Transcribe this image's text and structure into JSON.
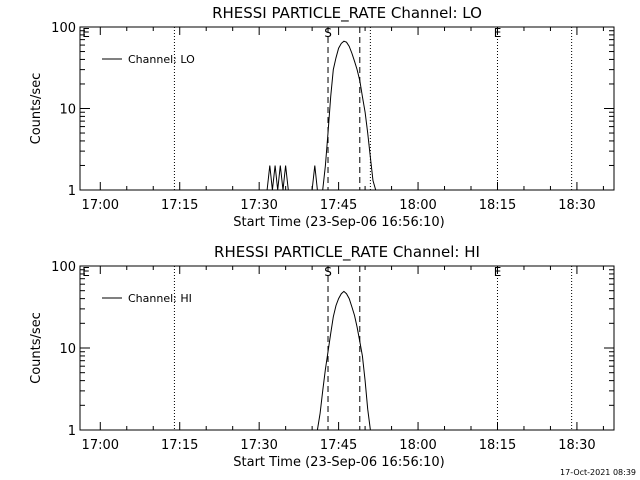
{
  "chart_data": [
    {
      "type": "line",
      "title": "RHESSI PARTICLE_RATE Channel: LO",
      "ylabel": "Counts/sec",
      "xlabel": "Start Time (23-Sep-06 16:56:10)",
      "yscale": "log",
      "ylim": [
        1,
        100
      ],
      "ytick_labels": [
        "1",
        "10",
        "100"
      ],
      "xticks": [
        "17:00",
        "17:15",
        "17:30",
        "17:45",
        "18:00",
        "18:15",
        "18:30"
      ],
      "legend": {
        "position": "top-left",
        "entries": [
          "Channel: LO"
        ]
      },
      "markers": [
        {
          "label": "E",
          "time": "16:56"
        },
        {
          "label": "S",
          "time": "17:43"
        },
        {
          "label": "E",
          "time": "18:15"
        }
      ],
      "dotted_lines": [
        "17:14",
        "17:51",
        "18:15",
        "18:29"
      ],
      "dashed_lines": [
        "17:43",
        "17:49"
      ],
      "series": [
        {
          "name": "Channel: LO",
          "points": [
            [
              "17:31.5",
              1
            ],
            [
              "17:32",
              2
            ],
            [
              "17:32.5",
              1
            ],
            [
              "17:33",
              2
            ],
            [
              "17:33.5",
              1
            ],
            [
              "17:34",
              2
            ],
            [
              "17:34.5",
              1
            ],
            [
              "17:35",
              2
            ],
            [
              "17:35.5",
              1
            ],
            [
              "17:40",
              1
            ],
            [
              "17:40.5",
              2
            ],
            [
              "17:41",
              1
            ],
            [
              "17:42",
              1
            ],
            [
              "17:42.5",
              2
            ],
            [
              "17:43",
              5
            ],
            [
              "17:43.5",
              14
            ],
            [
              "17:44",
              30
            ],
            [
              "17:44.5",
              42
            ],
            [
              "17:45",
              55
            ],
            [
              "17:45.5",
              63
            ],
            [
              "17:46",
              67
            ],
            [
              "17:46.5",
              65
            ],
            [
              "17:47",
              58
            ],
            [
              "17:47.5",
              48
            ],
            [
              "17:48",
              38
            ],
            [
              "17:48.5",
              30
            ],
            [
              "17:49",
              22
            ],
            [
              "17:49.5",
              14
            ],
            [
              "17:50",
              9
            ],
            [
              "17:50.5",
              5
            ],
            [
              "17:51",
              2.5
            ],
            [
              "17:51.5",
              1.3
            ],
            [
              "17:52",
              1
            ]
          ]
        }
      ]
    },
    {
      "type": "line",
      "title": "RHESSI PARTICLE_RATE Channel: HI",
      "ylabel": "Counts/sec",
      "xlabel": "Start Time (23-Sep-06 16:56:10)",
      "yscale": "log",
      "ylim": [
        1,
        100
      ],
      "ytick_labels": [
        "1",
        "10",
        "100"
      ],
      "xticks": [
        "17:00",
        "17:15",
        "17:30",
        "17:45",
        "18:00",
        "18:15",
        "18:30"
      ],
      "legend": {
        "position": "top-left",
        "entries": [
          "Channel: HI"
        ]
      },
      "markers": [
        {
          "label": "E",
          "time": "16:56"
        },
        {
          "label": "S",
          "time": "17:43"
        },
        {
          "label": "E",
          "time": "18:15"
        }
      ],
      "dotted_lines": [
        "17:14",
        "18:15",
        "18:29"
      ],
      "dashed_lines": [
        "17:43",
        "17:49"
      ],
      "series": [
        {
          "name": "Channel: HI",
          "points": [
            [
              "17:41",
              1
            ],
            [
              "17:41.5",
              1.6
            ],
            [
              "17:42",
              3
            ],
            [
              "17:42.5",
              5.5
            ],
            [
              "17:43",
              9
            ],
            [
              "17:43.5",
              15
            ],
            [
              "17:44",
              24
            ],
            [
              "17:44.5",
              33
            ],
            [
              "17:45",
              40
            ],
            [
              "17:45.5",
              46
            ],
            [
              "17:46",
              49
            ],
            [
              "17:46.5",
              46
            ],
            [
              "17:47",
              40
            ],
            [
              "17:47.5",
              32
            ],
            [
              "17:48",
              25
            ],
            [
              "17:48.5",
              18
            ],
            [
              "17:49",
              12
            ],
            [
              "17:49.5",
              8
            ],
            [
              "17:50",
              4
            ],
            [
              "17:50.5",
              1.8
            ],
            [
              "17:51",
              1
            ]
          ]
        }
      ]
    }
  ],
  "timestamp": "17-Oct-2021 08:39"
}
